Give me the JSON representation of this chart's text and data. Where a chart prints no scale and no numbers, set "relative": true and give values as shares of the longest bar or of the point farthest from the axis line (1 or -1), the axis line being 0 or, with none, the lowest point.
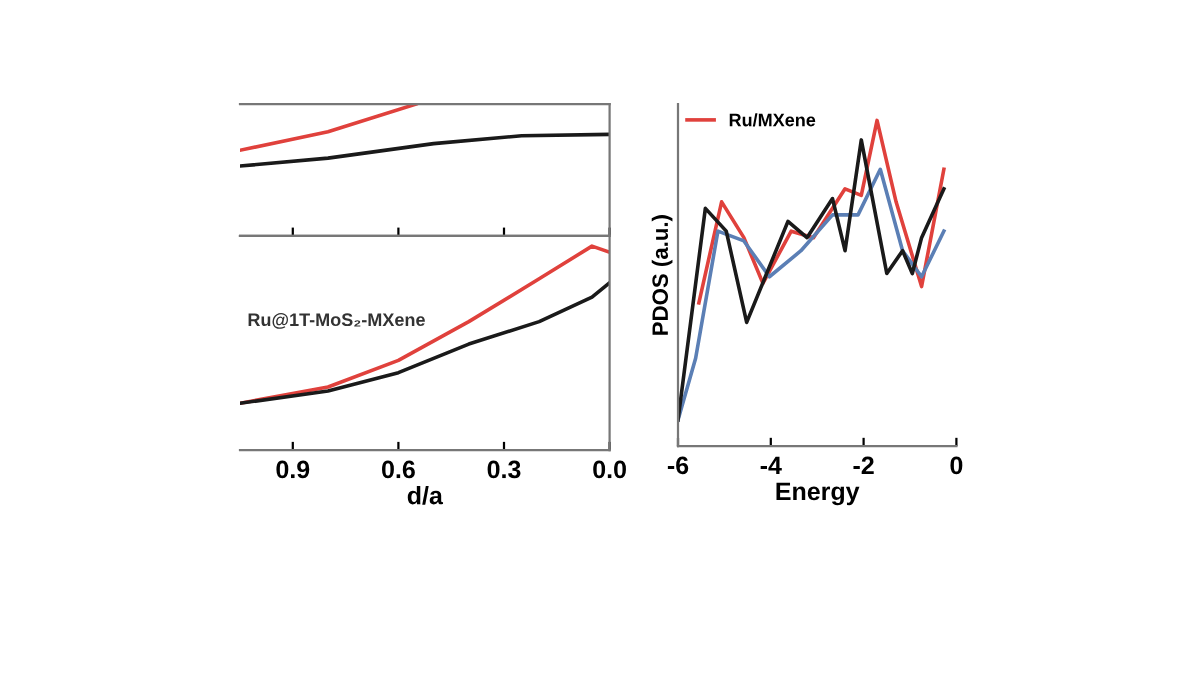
{
  "chart_data": [
    {
      "type": "line",
      "relative": true,
      "xlim": [
        1.05,
        0.0
      ],
      "xticks": [
        0.9,
        0.6,
        0.3,
        0.0
      ],
      "tick_labels": false,
      "grid": false,
      "legend": false,
      "series": [
        {
          "x": [
            1.05,
            0.8,
            0.55
          ],
          "color": "#e0413c",
          "values": [
            0.65,
            0.79,
            1.0
          ]
        },
        {
          "x": [
            1.05,
            0.8,
            0.5,
            0.25,
            0.0
          ],
          "color": "#1a1a1a",
          "values": [
            0.53,
            0.59,
            0.7,
            0.76,
            0.77
          ]
        }
      ]
    },
    {
      "type": "line",
      "relative": true,
      "xlim": [
        1.05,
        0.0
      ],
      "xticks": [
        {
          "value": 0.9,
          "label": "0.9"
        },
        {
          "value": 0.6,
          "label": "0.6"
        },
        {
          "value": 0.3,
          "label": "0.3"
        },
        {
          "value": 0.0,
          "label": "0.0"
        }
      ],
      "tick_labels": "x",
      "xlabel": "d/a",
      "grid": false,
      "legend": false,
      "annotations": [
        "Ru@1T-MoS₂-MXene"
      ],
      "series": [
        {
          "x": [
            1.05,
            0.8,
            0.6,
            0.4,
            0.2,
            0.05,
            0.0
          ],
          "color": "#e0413c",
          "values": [
            0.23,
            0.31,
            0.44,
            0.63,
            0.84,
            1.0,
            0.97
          ]
        },
        {
          "x": [
            1.05,
            0.8,
            0.6,
            0.4,
            0.2,
            0.05,
            0.0
          ],
          "color": "#1a1a1a",
          "values": [
            0.23,
            0.29,
            0.38,
            0.52,
            0.63,
            0.75,
            0.82
          ]
        }
      ]
    },
    {
      "type": "line",
      "relative": true,
      "xlim": [
        -6,
        0
      ],
      "xticks": [
        -6,
        -4,
        -2,
        0
      ],
      "tick_labels": "x",
      "xlabel": "Energy",
      "ylabel": "PDOS (a.u.)",
      "grid": false,
      "legend": "top left",
      "series": [
        {
          "name": "Ru/MXene",
          "x": [
            -5.55,
            -5.06,
            -4.58,
            -4.17,
            -3.56,
            -3.08,
            -2.4,
            -2.05,
            -1.71,
            -1.3,
            -0.75,
            -0.27
          ],
          "color": "#e0413c",
          "values": [
            0.44,
            0.75,
            0.64,
            0.5,
            0.66,
            0.64,
            0.79,
            0.77,
            1.0,
            0.75,
            0.49,
            0.85
          ]
        },
        {
          "x": [
            -6,
            -5.62,
            -5.14,
            -4.58,
            -4.03,
            -3.35,
            -2.67,
            -2.12,
            -1.64,
            -1.16,
            -0.75,
            -0.27
          ],
          "color": "#5b7fb5",
          "values": [
            0.08,
            0.27,
            0.66,
            0.63,
            0.52,
            0.6,
            0.71,
            0.71,
            0.85,
            0.6,
            0.52,
            0.66
          ]
        },
        {
          "x": [
            -6,
            -5.41,
            -4.96,
            -4.52,
            -3.63,
            -3.22,
            -2.67,
            -2.4,
            -2.05,
            -1.5,
            -1.16,
            -0.95,
            -0.75,
            -0.27
          ],
          "color": "#1a1a1a",
          "values": [
            0.08,
            0.73,
            0.66,
            0.38,
            0.69,
            0.64,
            0.76,
            0.6,
            0.94,
            0.53,
            0.6,
            0.53,
            0.64,
            0.79
          ]
        }
      ]
    }
  ]
}
